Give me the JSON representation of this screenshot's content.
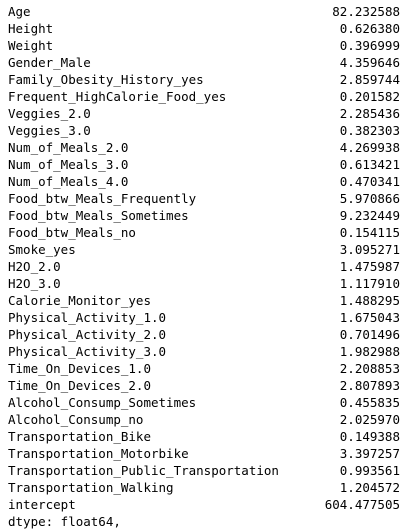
{
  "series": [
    {
      "name": "Age",
      "value": "82.232588"
    },
    {
      "name": "Height",
      "value": "0.626380"
    },
    {
      "name": "Weight",
      "value": "0.396999"
    },
    {
      "name": "Gender_Male",
      "value": "4.359646"
    },
    {
      "name": "Family_Obesity_History_yes",
      "value": "2.859744"
    },
    {
      "name": "Frequent_HighCalorie_Food_yes",
      "value": "0.201582"
    },
    {
      "name": "Veggies_2.0",
      "value": "2.285436"
    },
    {
      "name": "Veggies_3.0",
      "value": "0.382303"
    },
    {
      "name": "Num_of_Meals_2.0",
      "value": "4.269938"
    },
    {
      "name": "Num_of_Meals_3.0",
      "value": "0.613421"
    },
    {
      "name": "Num_of_Meals_4.0",
      "value": "0.470341"
    },
    {
      "name": "Food_btw_Meals_Frequently",
      "value": "5.970866"
    },
    {
      "name": "Food_btw_Meals_Sometimes",
      "value": "9.232449"
    },
    {
      "name": "Food_btw_Meals_no",
      "value": "0.154115"
    },
    {
      "name": "Smoke_yes",
      "value": "3.095271"
    },
    {
      "name": "H2O_2.0",
      "value": "1.475987"
    },
    {
      "name": "H2O_3.0",
      "value": "1.117910"
    },
    {
      "name": "Calorie_Monitor_yes",
      "value": "1.488295"
    },
    {
      "name": "Physical_Activity_1.0",
      "value": "1.675043"
    },
    {
      "name": "Physical_Activity_2.0",
      "value": "0.701496"
    },
    {
      "name": "Physical_Activity_3.0",
      "value": "1.982988"
    },
    {
      "name": "Time_On_Devices_1.0",
      "value": "2.208853"
    },
    {
      "name": "Time_On_Devices_2.0",
      "value": "2.807893"
    },
    {
      "name": "Alcohol_Consump_Sometimes",
      "value": "0.455835"
    },
    {
      "name": "Alcohol_Consump_no",
      "value": "2.025970"
    },
    {
      "name": "Transportation_Bike",
      "value": "0.149388"
    },
    {
      "name": "Transportation_Motorbike",
      "value": "3.397257"
    },
    {
      "name": "Transportation_Public_Transportation",
      "value": "0.993561"
    },
    {
      "name": "Transportation_Walking",
      "value": "1.204572"
    },
    {
      "name": "intercept",
      "value": "604.477505"
    }
  ],
  "dtype": "dtype: float64,"
}
